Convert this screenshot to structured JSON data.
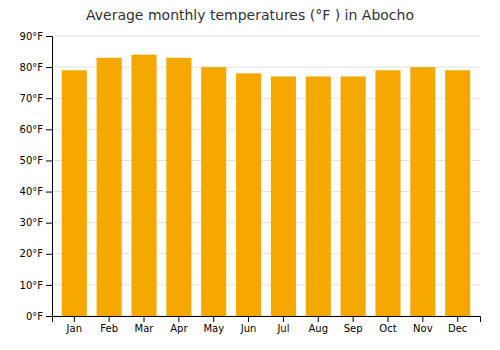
{
  "chart_data": {
    "type": "bar",
    "title": "Average monthly temperatures (°F ) in Abocho",
    "categories": [
      "Jan",
      "Feb",
      "Mar",
      "Apr",
      "May",
      "Jun",
      "Jul",
      "Aug",
      "Sep",
      "Oct",
      "Nov",
      "Dec"
    ],
    "values": [
      79,
      83,
      84,
      83,
      80,
      78,
      77,
      77,
      77,
      79,
      80,
      79
    ],
    "color": "#F5A800",
    "ylim": [
      0,
      90
    ],
    "yticks": [
      {
        "value": 0,
        "label": "0°F"
      },
      {
        "value": 10,
        "label": "10°F"
      },
      {
        "value": 20,
        "label": "20°F"
      },
      {
        "value": 30,
        "label": "30°F"
      },
      {
        "value": 40,
        "label": "40°F"
      },
      {
        "value": 50,
        "label": "50°F"
      },
      {
        "value": 60,
        "label": "60°F"
      },
      {
        "value": 70,
        "label": "70°F"
      },
      {
        "value": 80,
        "label": "80°F"
      },
      {
        "value": 90,
        "label": "90°F"
      }
    ],
    "grid": true
  }
}
